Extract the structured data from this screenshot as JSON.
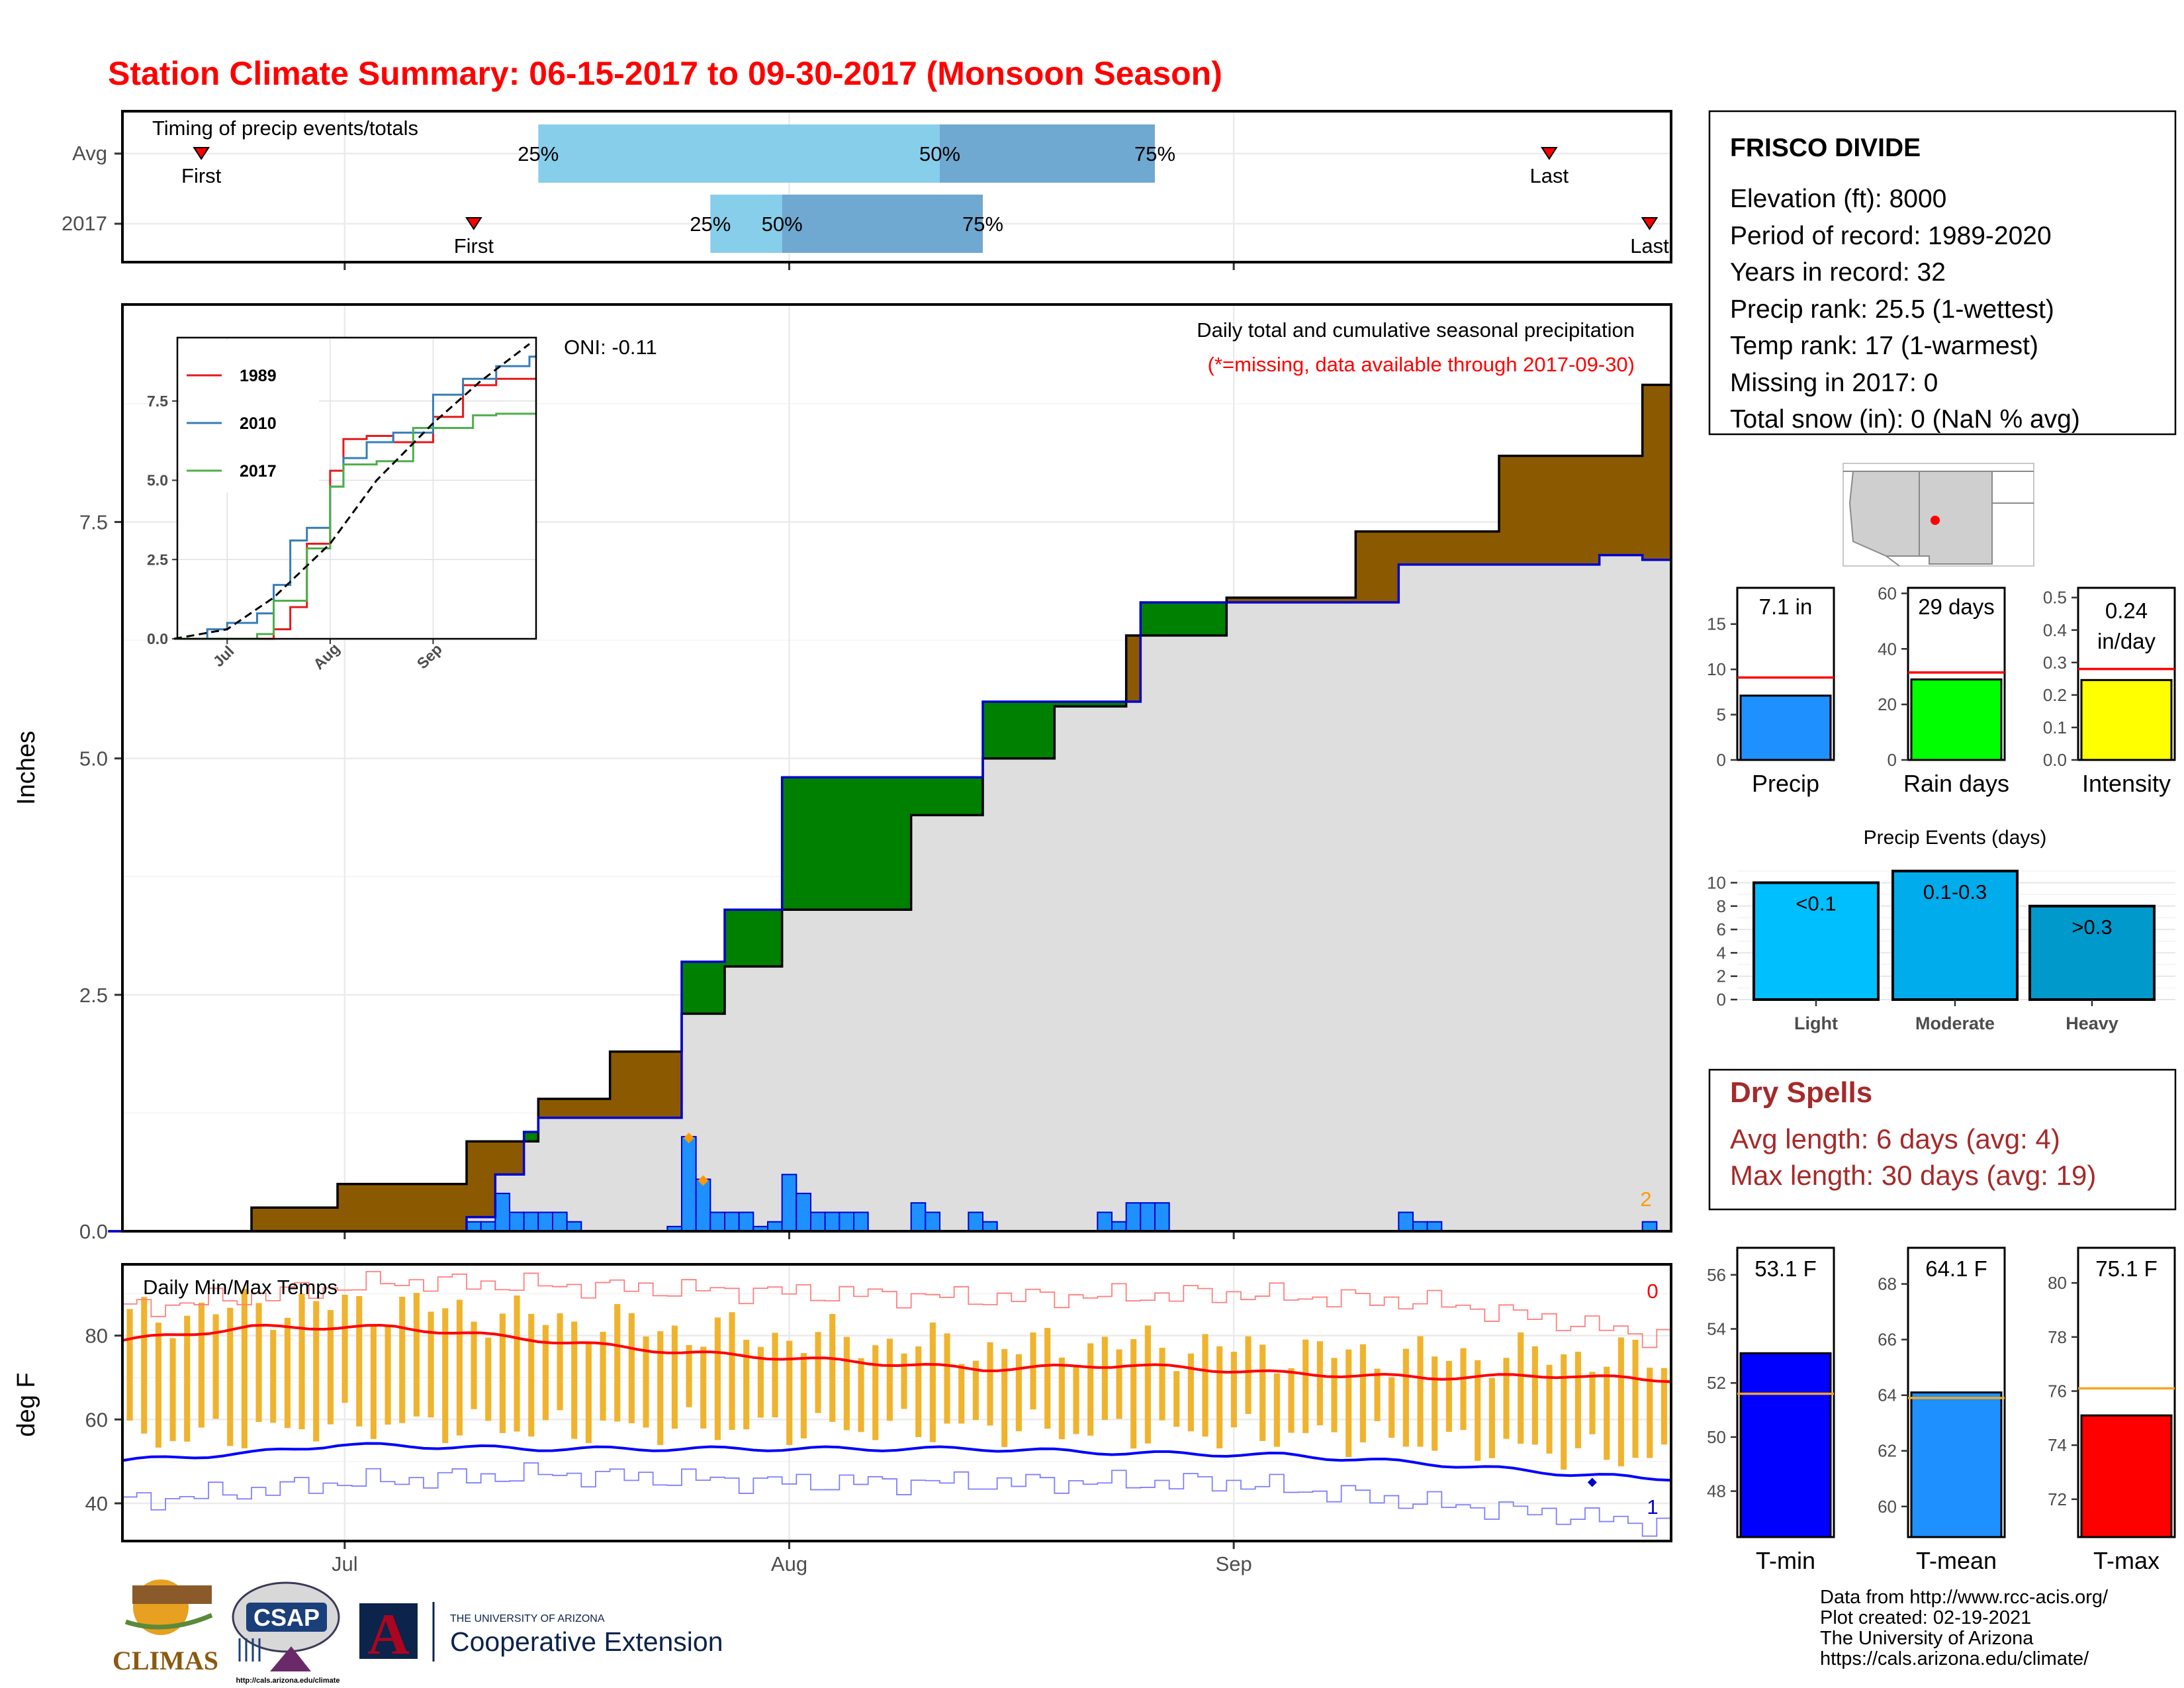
{
  "title": "Station Climate Summary: 06-15-2017 to 09-30-2017 (Monsoon Season)",
  "colors": {
    "title": "#ff0000",
    "brown": "#8b5a00",
    "green": "#008000",
    "lightgray": "#dedede",
    "bar_blue": "#1e90ff",
    "bar_edge": "#0000cd",
    "orange": "#ff9900",
    "tmax_red": "#ff0000",
    "tmin_blue": "#0000ff",
    "temp_bar": "#f0b32e",
    "dry_red": "#a52a2a",
    "timing_light": "#87ceeb",
    "timing_dark": "#6fa8d0"
  },
  "date_axis": {
    "ticks": [
      "Jul",
      "Aug",
      "Sep"
    ]
  },
  "timing": {
    "title": "Timing of precip events/totals",
    "rows": [
      {
        "label": "Avg",
        "first_date": "06-21",
        "first_label": "First",
        "p25_date": "07-15",
        "p25": "25%",
        "p50_date": "08-12",
        "p50": "50%",
        "p75_date": "08-27",
        "p75": "75%",
        "last_date": "09-23",
        "last_label": "Last"
      },
      {
        "label": "2017",
        "first_date": "07-10",
        "first_label": "First",
        "p25_date": "07-27",
        "p25": "25%",
        "p50_date": "08-01",
        "p50": "50%",
        "p75_date": "08-15",
        "p75": "75%",
        "last_date": "09-30",
        "last_label": "Last"
      }
    ]
  },
  "main_panel": {
    "ylabel": "Inches",
    "header": "Daily total and cumulative seasonal precipitation",
    "subheader": "(*=missing, data available through 2017-09-30)",
    "oni": "ONI: -0.11",
    "count_label": "2",
    "yticks": [
      "0.0",
      "2.5",
      "5.0",
      "7.5"
    ]
  },
  "inset": {
    "yticks": [
      "0.0",
      "2.5",
      "5.0",
      "7.5"
    ],
    "xticks": [
      "Jul",
      "Aug",
      "Sep"
    ],
    "legend": [
      "1989",
      "2010",
      "2017"
    ]
  },
  "temp_panel": {
    "ylabel": "deg F",
    "title": "Daily Min/Max Temps",
    "yticks": [
      "40",
      "60",
      "80"
    ],
    "count_max": "0",
    "count_min": "1"
  },
  "station": {
    "name": "FRISCO DIVIDE",
    "lines": [
      "Elevation (ft): 8000",
      "Period of record: 1989-2020",
      "Years in record: 32",
      "Precip rank: 25.5 (1-wettest)",
      "Temp rank: 17 (1-warmest)",
      "Missing in 2017: 0",
      "Total snow (in): 0 (NaN % avg)"
    ]
  },
  "summary_bars": [
    {
      "label": "Precip",
      "value_text": "7.1 in",
      "value": 7.1,
      "avg": 9.1,
      "ymax": 19,
      "ticks": [
        "0",
        "5",
        "10",
        "15"
      ],
      "color": "#1e90ff"
    },
    {
      "label": "Rain days",
      "value_text": "29 days",
      "value": 29,
      "avg": 31.5,
      "ymax": 62,
      "ticks": [
        "0",
        "20",
        "40",
        "60"
      ],
      "color": "#00ff00"
    },
    {
      "label": "Intensity",
      "value_text": "0.24 in/day",
      "value_text_1": "0.24",
      "value_text_2": "in/day",
      "value": 0.246,
      "avg": 0.28,
      "ymax": 0.53,
      "ticks": [
        "0.0",
        "0.1",
        "0.2",
        "0.3",
        "0.4",
        "0.5"
      ],
      "color": "#ffff00"
    }
  ],
  "events": {
    "title": "Precip Events (days)",
    "ticks": [
      "0",
      "2",
      "4",
      "6",
      "8",
      "10"
    ],
    "bars": [
      {
        "label": "Light",
        "range": "<0.1",
        "value": 10,
        "color": "#00bfff"
      },
      {
        "label": "Moderate",
        "range": "0.1-0.3",
        "value": 11,
        "color": "#00acec"
      },
      {
        "label": "Heavy",
        "range": ">0.3",
        "value": 8,
        "color": "#0099cc"
      }
    ]
  },
  "dry_spells": {
    "title": "Dry Spells",
    "avg_length": "Avg length: 6 days (avg: 4)",
    "max_length": "Max length: 30 days (avg: 19)"
  },
  "temp_bars": [
    {
      "label": "T-min",
      "value_text": "53.1 F",
      "value": 53.1,
      "avg": 51.6,
      "ymin": 46.3,
      "ymax": 57.0,
      "ticks": [
        "48",
        "50",
        "52",
        "54",
        "56"
      ],
      "color": "#0000ff"
    },
    {
      "label": "T-mean",
      "value_text": "64.1 F",
      "value": 64.1,
      "avg": 63.9,
      "ymin": 58.9,
      "ymax": 69.3,
      "ticks": [
        "60",
        "62",
        "64",
        "66",
        "68"
      ],
      "color": "#1e90ff"
    },
    {
      "label": "T-max",
      "value_text": "75.1 F",
      "value": 75.1,
      "avg": 76.1,
      "ymin": 70.6,
      "ymax": 81.3,
      "ticks": [
        "72",
        "74",
        "76",
        "78",
        "80"
      ],
      "color": "#ff0000"
    }
  ],
  "footer": {
    "lines": [
      "Data from http://www.rcc-acis.org/",
      "Plot created: 02-19-2021",
      "The University of Arizona",
      "https://cals.arizona.edu/climate/"
    ]
  },
  "logos": {
    "climas": "CLIMAS",
    "csap": "CSAP",
    "csap_url": "http://cals.arizona.edu/climate",
    "ua_small": "THE UNIVERSITY OF ARIZONA",
    "ua_big": "Cooperative Extension"
  },
  "chart_data": [
    {
      "type": "area",
      "title": "Daily total and cumulative seasonal precipitation",
      "ylabel": "Inches",
      "ylim": [
        0,
        9.8
      ],
      "xlim": [
        "06-15",
        "09-30"
      ],
      "series": [
        {
          "name": "Average cumulative (black step)",
          "x": [
            "06-15",
            "06-25",
            "07-01",
            "07-10",
            "07-15",
            "07-20",
            "07-25",
            "07-28",
            "08-01",
            "08-10",
            "08-15",
            "08-20",
            "08-25",
            "09-01",
            "09-10",
            "09-20",
            "09-30"
          ],
          "values": [
            0.0,
            0.25,
            0.5,
            0.95,
            1.4,
            1.9,
            2.3,
            2.8,
            3.4,
            4.4,
            5.0,
            5.55,
            6.3,
            6.7,
            7.4,
            8.2,
            8.95
          ]
        },
        {
          "name": "2017 cumulative (blue step)",
          "x": [
            "06-15",
            "07-10",
            "07-12",
            "07-14",
            "07-15",
            "07-24",
            "07-25",
            "07-28",
            "08-01",
            "08-10",
            "08-15",
            "08-26",
            "09-13",
            "09-27",
            "09-30"
          ],
          "values": [
            0.0,
            0.15,
            0.6,
            1.05,
            1.2,
            1.2,
            2.85,
            3.4,
            4.8,
            4.8,
            5.6,
            6.65,
            7.05,
            7.15,
            7.1
          ]
        },
        {
          "name": "2017 daily precipitation (bars)",
          "x": [
            "07-10",
            "07-11",
            "07-12",
            "07-13",
            "07-14",
            "07-15",
            "07-16",
            "07-17",
            "07-24",
            "07-25",
            "07-26",
            "07-27",
            "07-28",
            "07-29",
            "07-30",
            "07-31",
            "08-01",
            "08-02",
            "08-03",
            "08-04",
            "08-05",
            "08-06",
            "08-10",
            "08-11",
            "08-14",
            "08-15",
            "08-23",
            "08-24",
            "08-25",
            "08-26",
            "08-27",
            "09-13",
            "09-14",
            "09-15",
            "09-30"
          ],
          "values": [
            0.1,
            0.1,
            0.4,
            0.2,
            0.2,
            0.2,
            0.2,
            0.1,
            0.05,
            1.0,
            0.55,
            0.2,
            0.2,
            0.2,
            0.05,
            0.1,
            0.6,
            0.4,
            0.2,
            0.2,
            0.2,
            0.2,
            0.3,
            0.2,
            0.2,
            0.1,
            0.2,
            0.1,
            0.3,
            0.3,
            0.3,
            0.2,
            0.1,
            0.1,
            0.1
          ]
        }
      ]
    },
    {
      "type": "line",
      "title": "",
      "ylim": [
        0,
        9.5
      ],
      "xlim": [
        "06-15",
        "09-30"
      ],
      "series": [
        {
          "name": "1989",
          "color": "#e41a1c",
          "x": [
            "06-15",
            "07-10",
            "07-15",
            "07-20",
            "07-25",
            "08-01",
            "08-05",
            "08-12",
            "08-20",
            "09-01",
            "09-10",
            "09-20",
            "09-30"
          ],
          "values": [
            0.0,
            0.0,
            0.3,
            1.0,
            3.0,
            5.3,
            6.3,
            6.4,
            6.2,
            7.0,
            8.0,
            8.2,
            8.2
          ]
        },
        {
          "name": "2010",
          "color": "#377eb8",
          "x": [
            "06-15",
            "06-25",
            "07-01",
            "07-10",
            "07-15",
            "07-20",
            "07-25",
            "08-01",
            "08-05",
            "08-12",
            "08-20",
            "09-01",
            "09-10",
            "09-20",
            "09-30"
          ],
          "values": [
            0.0,
            0.3,
            0.5,
            0.8,
            1.7,
            3.1,
            3.5,
            4.8,
            5.7,
            6.2,
            6.5,
            7.7,
            8.2,
            8.6,
            8.9
          ]
        },
        {
          "name": "2017",
          "color": "#4daf4a",
          "x": [
            "06-15",
            "07-10",
            "07-15",
            "07-25",
            "08-01",
            "08-05",
            "08-15",
            "08-26",
            "09-13",
            "09-20",
            "09-30"
          ],
          "values": [
            0.0,
            0.15,
            1.2,
            2.85,
            4.8,
            5.5,
            5.6,
            6.65,
            7.05,
            7.1,
            7.1
          ]
        },
        {
          "name": "Average",
          "color": "#000000",
          "dashed": true,
          "x": [
            "06-15",
            "07-01",
            "07-15",
            "08-01",
            "08-15",
            "09-01",
            "09-15",
            "09-30"
          ],
          "values": [
            0.0,
            0.3,
            1.3,
            3.0,
            5.0,
            6.8,
            8.1,
            9.3
          ]
        }
      ]
    },
    {
      "type": "bar",
      "title": "Daily Min/Max Temps",
      "ylabel": "deg F",
      "ylim": [
        31,
        97
      ],
      "xlim": [
        "06-15",
        "09-30"
      ],
      "series": [
        {
          "name": "Average max (red line)",
          "x": [
            "06-15",
            "06-25",
            "07-05",
            "07-15",
            "07-25",
            "08-05",
            "08-15",
            "08-25",
            "09-05",
            "09-15",
            "09-25",
            "09-30"
          ],
          "values": [
            78.5,
            82,
            82,
            79,
            76,
            74,
            72,
            73,
            71,
            70,
            70.5,
            69.5
          ]
        },
        {
          "name": "Average min (blue line)",
          "x": [
            "06-15",
            "06-25",
            "07-01",
            "07-15",
            "07-25",
            "08-05",
            "08-15",
            "08-25",
            "09-05",
            "09-15",
            "09-25",
            "09-30"
          ],
          "values": [
            50,
            52,
            54,
            53,
            53,
            53,
            53,
            52,
            51.5,
            49.5,
            47,
            46
          ]
        },
        {
          "name": "Record max (thin red)",
          "x": [
            "06-15",
            "07-05",
            "07-25",
            "08-15",
            "09-01",
            "09-15",
            "09-25",
            "09-30"
          ],
          "values": [
            86,
            93,
            91,
            89,
            90,
            88,
            83,
            80
          ]
        },
        {
          "name": "Record min (thin blue)",
          "x": [
            "06-15",
            "07-01",
            "07-15",
            "08-01",
            "08-15",
            "09-01",
            "09-15",
            "09-25",
            "09-30"
          ],
          "values": [
            40,
            45,
            47,
            45,
            45,
            45,
            40,
            37,
            35
          ]
        }
      ]
    },
    {
      "type": "bar",
      "title": "Precip Events (days)",
      "categories": [
        "Light",
        "Moderate",
        "Heavy"
      ],
      "values": [
        10,
        11,
        8
      ],
      "ylim": [
        0,
        11.5
      ]
    },
    {
      "type": "bar",
      "title": "",
      "categories": [
        "Precip",
        "Rain days",
        "Intensity"
      ],
      "values": [
        7.1,
        29,
        0.24
      ]
    },
    {
      "type": "bar",
      "title": "",
      "categories": [
        "T-min",
        "T-mean",
        "T-max"
      ],
      "values": [
        53.1,
        64.1,
        75.1
      ]
    }
  ]
}
